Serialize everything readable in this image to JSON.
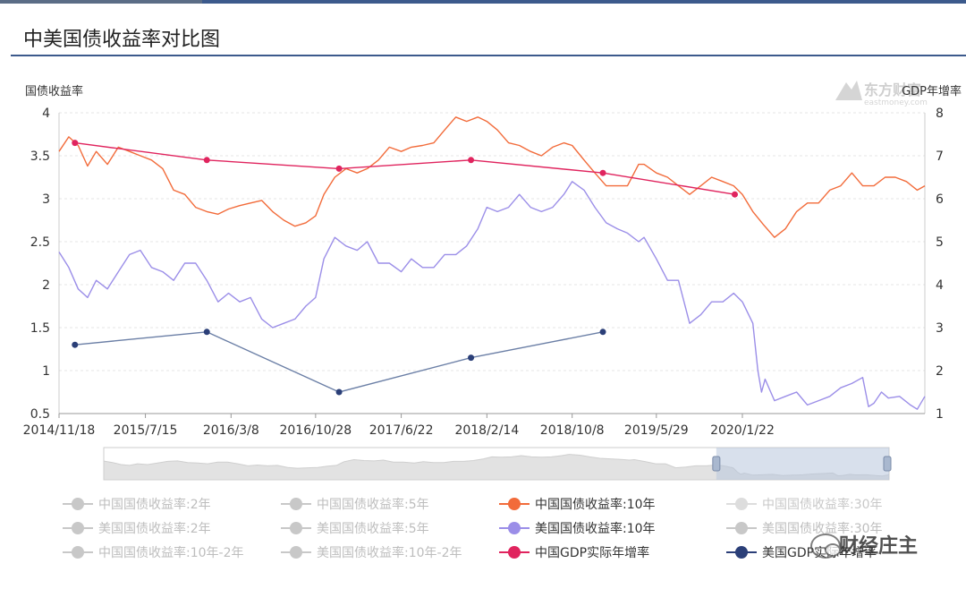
{
  "header": {
    "title": "中美国债收益率对比图"
  },
  "chart_data": {
    "type": "line",
    "ylabel_left": "国债收益率",
    "ylabel_right": "GDP年增率",
    "y_left_range": [
      0.5,
      4
    ],
    "y_left_ticks": [
      "4",
      "3.5",
      "3",
      "2.5",
      "2",
      "1.5",
      "1",
      "0.5"
    ],
    "y_right_range": [
      1,
      8
    ],
    "y_right_ticks": [
      "8",
      "7",
      "6",
      "5",
      "4",
      "3",
      "2",
      "1"
    ],
    "x_range": [
      "2014-11-18",
      "2021-06-10"
    ],
    "x_ticks": [
      {
        "label": "2014/11/18",
        "date": "2014-11-18"
      },
      {
        "label": "2015/7/15",
        "date": "2015-07-15"
      },
      {
        "label": "2016/3/8",
        "date": "2016-03-08"
      },
      {
        "label": "2016/10/28",
        "date": "2016-10-28"
      },
      {
        "label": "2017/6/22",
        "date": "2017-06-22"
      },
      {
        "label": "2018/2/14",
        "date": "2018-02-14"
      },
      {
        "label": "2018/10/8",
        "date": "2018-10-08"
      },
      {
        "label": "2019/5/29",
        "date": "2019-05-29"
      },
      {
        "label": "2020/1/22",
        "date": "2020-01-22"
      }
    ],
    "grid": true,
    "series": [
      {
        "name": "中国国债收益率:10年",
        "axis": "left",
        "color": "#f26b3a",
        "markers": false,
        "points": [
          [
            "2014-11-18",
            3.55
          ],
          [
            "2014-12-15",
            3.72
          ],
          [
            "2015-01-10",
            3.62
          ],
          [
            "2015-02-05",
            3.38
          ],
          [
            "2015-03-01",
            3.55
          ],
          [
            "2015-04-01",
            3.4
          ],
          [
            "2015-05-01",
            3.6
          ],
          [
            "2015-06-01",
            3.55
          ],
          [
            "2015-07-01",
            3.5
          ],
          [
            "2015-08-01",
            3.45
          ],
          [
            "2015-09-01",
            3.35
          ],
          [
            "2015-10-01",
            3.1
          ],
          [
            "2015-11-01",
            3.05
          ],
          [
            "2015-12-01",
            2.9
          ],
          [
            "2016-01-01",
            2.85
          ],
          [
            "2016-02-01",
            2.82
          ],
          [
            "2016-03-01",
            2.88
          ],
          [
            "2016-04-01",
            2.92
          ],
          [
            "2016-05-01",
            2.95
          ],
          [
            "2016-06-01",
            2.98
          ],
          [
            "2016-07-01",
            2.85
          ],
          [
            "2016-08-01",
            2.75
          ],
          [
            "2016-09-01",
            2.68
          ],
          [
            "2016-10-01",
            2.72
          ],
          [
            "2016-10-28",
            2.8
          ],
          [
            "2016-11-20",
            3.05
          ],
          [
            "2016-12-20",
            3.25
          ],
          [
            "2017-01-20",
            3.35
          ],
          [
            "2017-02-20",
            3.3
          ],
          [
            "2017-03-20",
            3.35
          ],
          [
            "2017-04-20",
            3.45
          ],
          [
            "2017-05-20",
            3.6
          ],
          [
            "2017-06-22",
            3.55
          ],
          [
            "2017-07-20",
            3.6
          ],
          [
            "2017-08-20",
            3.62
          ],
          [
            "2017-09-20",
            3.65
          ],
          [
            "2017-10-20",
            3.8
          ],
          [
            "2017-11-20",
            3.95
          ],
          [
            "2017-12-20",
            3.9
          ],
          [
            "2018-01-20",
            3.95
          ],
          [
            "2018-02-14",
            3.9
          ],
          [
            "2018-03-15",
            3.8
          ],
          [
            "2018-04-15",
            3.65
          ],
          [
            "2018-05-15",
            3.62
          ],
          [
            "2018-06-15",
            3.55
          ],
          [
            "2018-07-15",
            3.5
          ],
          [
            "2018-08-15",
            3.6
          ],
          [
            "2018-09-15",
            3.65
          ],
          [
            "2018-10-08",
            3.62
          ],
          [
            "2018-11-10",
            3.45
          ],
          [
            "2018-12-10",
            3.3
          ],
          [
            "2019-01-10",
            3.15
          ],
          [
            "2019-02-10",
            3.15
          ],
          [
            "2019-03-10",
            3.15
          ],
          [
            "2019-04-10",
            3.4
          ],
          [
            "2019-04-25",
            3.4
          ],
          [
            "2019-05-29",
            3.3
          ],
          [
            "2019-06-29",
            3.25
          ],
          [
            "2019-07-29",
            3.15
          ],
          [
            "2019-08-29",
            3.05
          ],
          [
            "2019-09-29",
            3.15
          ],
          [
            "2019-10-29",
            3.25
          ],
          [
            "2019-11-29",
            3.2
          ],
          [
            "2019-12-29",
            3.15
          ],
          [
            "2020-01-22",
            3.05
          ],
          [
            "2020-02-20",
            2.85
          ],
          [
            "2020-03-20",
            2.7
          ],
          [
            "2020-04-20",
            2.55
          ],
          [
            "2020-05-20",
            2.65
          ],
          [
            "2020-06-20",
            2.85
          ],
          [
            "2020-07-20",
            2.95
          ],
          [
            "2020-08-20",
            2.95
          ],
          [
            "2020-09-20",
            3.1
          ],
          [
            "2020-10-20",
            3.15
          ],
          [
            "2020-11-20",
            3.3
          ],
          [
            "2020-12-20",
            3.15
          ],
          [
            "2021-01-20",
            3.15
          ],
          [
            "2021-02-20",
            3.25
          ],
          [
            "2021-03-20",
            3.25
          ],
          [
            "2021-04-20",
            3.2
          ],
          [
            "2021-05-20",
            3.1
          ],
          [
            "2021-06-10",
            3.15
          ]
        ]
      },
      {
        "name": "美国国债收益率:10年",
        "axis": "left",
        "color": "#9b8ee8",
        "markers": false,
        "points": [
          [
            "2014-11-18",
            2.38
          ],
          [
            "2014-12-15",
            2.2
          ],
          [
            "2015-01-10",
            1.95
          ],
          [
            "2015-02-05",
            1.85
          ],
          [
            "2015-03-01",
            2.05
          ],
          [
            "2015-04-01",
            1.95
          ],
          [
            "2015-05-01",
            2.15
          ],
          [
            "2015-06-01",
            2.35
          ],
          [
            "2015-07-01",
            2.4
          ],
          [
            "2015-08-01",
            2.2
          ],
          [
            "2015-09-01",
            2.15
          ],
          [
            "2015-10-01",
            2.05
          ],
          [
            "2015-11-01",
            2.25
          ],
          [
            "2015-12-01",
            2.25
          ],
          [
            "2016-01-01",
            2.05
          ],
          [
            "2016-02-01",
            1.8
          ],
          [
            "2016-03-01",
            1.9
          ],
          [
            "2016-04-01",
            1.8
          ],
          [
            "2016-05-01",
            1.85
          ],
          [
            "2016-06-01",
            1.6
          ],
          [
            "2016-07-01",
            1.5
          ],
          [
            "2016-08-01",
            1.55
          ],
          [
            "2016-09-01",
            1.6
          ],
          [
            "2016-10-01",
            1.75
          ],
          [
            "2016-10-28",
            1.85
          ],
          [
            "2016-11-20",
            2.3
          ],
          [
            "2016-12-20",
            2.55
          ],
          [
            "2017-01-20",
            2.45
          ],
          [
            "2017-02-20",
            2.4
          ],
          [
            "2017-03-20",
            2.5
          ],
          [
            "2017-04-20",
            2.25
          ],
          [
            "2017-05-20",
            2.25
          ],
          [
            "2017-06-22",
            2.15
          ],
          [
            "2017-07-20",
            2.3
          ],
          [
            "2017-08-20",
            2.2
          ],
          [
            "2017-09-20",
            2.2
          ],
          [
            "2017-10-20",
            2.35
          ],
          [
            "2017-11-20",
            2.35
          ],
          [
            "2017-12-20",
            2.45
          ],
          [
            "2018-01-20",
            2.65
          ],
          [
            "2018-02-14",
            2.9
          ],
          [
            "2018-03-15",
            2.85
          ],
          [
            "2018-04-15",
            2.9
          ],
          [
            "2018-05-15",
            3.05
          ],
          [
            "2018-06-15",
            2.9
          ],
          [
            "2018-07-15",
            2.85
          ],
          [
            "2018-08-15",
            2.9
          ],
          [
            "2018-09-15",
            3.05
          ],
          [
            "2018-10-08",
            3.2
          ],
          [
            "2018-11-10",
            3.1
          ],
          [
            "2018-12-10",
            2.9
          ],
          [
            "2019-01-10",
            2.72
          ],
          [
            "2019-02-10",
            2.65
          ],
          [
            "2019-03-10",
            2.6
          ],
          [
            "2019-04-10",
            2.5
          ],
          [
            "2019-04-25",
            2.55
          ],
          [
            "2019-05-29",
            2.3
          ],
          [
            "2019-06-29",
            2.05
          ],
          [
            "2019-07-29",
            2.05
          ],
          [
            "2019-08-29",
            1.55
          ],
          [
            "2019-09-29",
            1.65
          ],
          [
            "2019-10-29",
            1.8
          ],
          [
            "2019-11-29",
            1.8
          ],
          [
            "2019-12-29",
            1.9
          ],
          [
            "2020-01-22",
            1.8
          ],
          [
            "2020-02-20",
            1.55
          ],
          [
            "2020-03-05",
            1.0
          ],
          [
            "2020-03-15",
            0.75
          ],
          [
            "2020-03-25",
            0.9
          ],
          [
            "2020-04-20",
            0.65
          ],
          [
            "2020-05-20",
            0.7
          ],
          [
            "2020-06-20",
            0.75
          ],
          [
            "2020-07-20",
            0.6
          ],
          [
            "2020-08-20",
            0.65
          ],
          [
            "2020-09-20",
            0.7
          ],
          [
            "2020-10-20",
            0.8
          ],
          [
            "2020-11-20",
            0.85
          ],
          [
            "2020-12-20",
            0.92
          ],
          [
            "2021-01-05",
            0.58
          ],
          [
            "2021-01-20",
            0.62
          ],
          [
            "2021-02-10",
            0.75
          ],
          [
            "2021-03-01",
            0.68
          ],
          [
            "2021-04-01",
            0.7
          ],
          [
            "2021-05-01",
            0.6
          ],
          [
            "2021-05-20",
            0.55
          ],
          [
            "2021-06-10",
            0.7
          ]
        ]
      },
      {
        "name": "中国GDP实际年增率",
        "axis": "right",
        "color": "#e0245e",
        "markers": true,
        "points": [
          [
            "2015-01-01",
            7.3
          ],
          [
            "2016-01-01",
            6.9
          ],
          [
            "2017-01-01",
            6.7
          ],
          [
            "2018-01-01",
            6.9
          ],
          [
            "2019-01-01",
            6.6
          ],
          [
            "2020-01-01",
            6.1
          ]
        ]
      },
      {
        "name": "美国GDP实际年增率",
        "axis": "right",
        "color": "#6b7fa6",
        "markers": true,
        "marker_color": "#2b3f78",
        "points": [
          [
            "2015-01-01",
            2.6
          ],
          [
            "2016-01-01",
            2.9
          ],
          [
            "2017-01-01",
            1.5
          ],
          [
            "2018-01-01",
            2.3
          ],
          [
            "2019-01-01",
            2.9
          ]
        ]
      }
    ],
    "navigator": {
      "selection_start_fraction": 0.78,
      "selection_end_fraction": 1.0
    }
  },
  "legend": [
    {
      "label": "中国国债收益率:2年",
      "color": "#c8c8c8",
      "text_color": "#bdbdbd",
      "active": false
    },
    {
      "label": "中国国债收益率:5年",
      "color": "#c8c8c8",
      "text_color": "#bdbdbd",
      "active": false
    },
    {
      "label": "中国国债收益率:10年",
      "color": "#f26b3a",
      "text_color": "#333333",
      "active": true
    },
    {
      "label": "中国国债收益率:30年",
      "color": "#dddddd",
      "text_color": "#c8c8c8",
      "active": false
    },
    {
      "label": "美国国债收益率:2年",
      "color": "#c8c8c8",
      "text_color": "#bdbdbd",
      "active": false
    },
    {
      "label": "美国国债收益率:5年",
      "color": "#c8c8c8",
      "text_color": "#bdbdbd",
      "active": false
    },
    {
      "label": "美国国债收益率:10年",
      "color": "#9b8ee8",
      "text_color": "#333333",
      "active": true
    },
    {
      "label": "美国国债收益率:30年",
      "color": "#c8c8c8",
      "text_color": "#bdbdbd",
      "active": false
    },
    {
      "label": "中国国债收益率:10年-2年",
      "color": "#c8c8c8",
      "text_color": "#bdbdbd",
      "active": false
    },
    {
      "label": "美国国债收益率:10年-2年",
      "color": "#c8c8c8",
      "text_color": "#bdbdbd",
      "active": false
    },
    {
      "label": "中国GDP实际年增率",
      "color": "#e0245e",
      "text_color": "#333333",
      "active": true
    },
    {
      "label": "美国GDP实际年增率",
      "color": "#2b3f78",
      "text_color": "#333333",
      "active": true
    }
  ],
  "watermarks": {
    "logo_text": "东方财富",
    "logo_subtext": "eastmoney.com",
    "account_text": "财经庄主"
  }
}
